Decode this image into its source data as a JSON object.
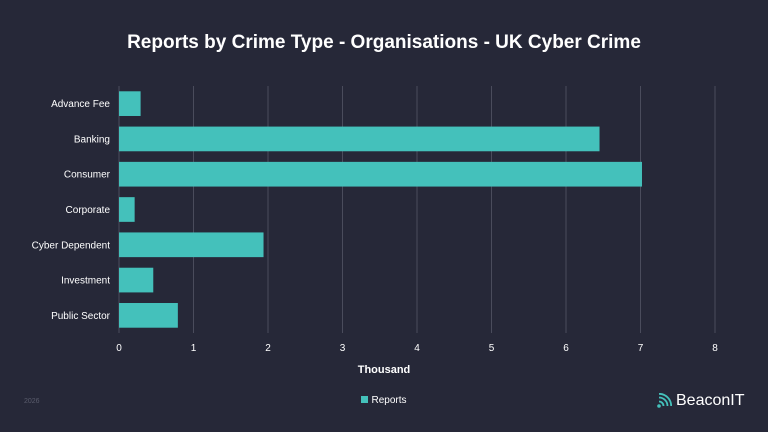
{
  "chart_data": {
    "type": "bar",
    "orientation": "horizontal",
    "title": "Reports by Crime Type - Organisations - UK Cyber Crime",
    "categories": [
      "Advance Fee",
      "Banking",
      "Consumer",
      "Corporate",
      "Cyber Dependent",
      "Investment",
      "Public Sector"
    ],
    "series": [
      {
        "name": "Reports",
        "values": [
          0.29,
          6.45,
          7.02,
          0.21,
          1.94,
          0.46,
          0.79
        ]
      }
    ],
    "xlabel": "Thousand",
    "ylabel": "",
    "xlim": [
      0,
      8
    ],
    "xticks": [
      "0",
      "1",
      "2",
      "3",
      "4",
      "5",
      "6",
      "7",
      "8"
    ],
    "grid": true,
    "legend_position": "bottom"
  },
  "colors": {
    "bar": "#44c1bb",
    "background": "#262838"
  },
  "footer": {
    "year": "2026"
  },
  "brand": {
    "name": "BeaconIT",
    "icon": "signal-wave-icon"
  }
}
